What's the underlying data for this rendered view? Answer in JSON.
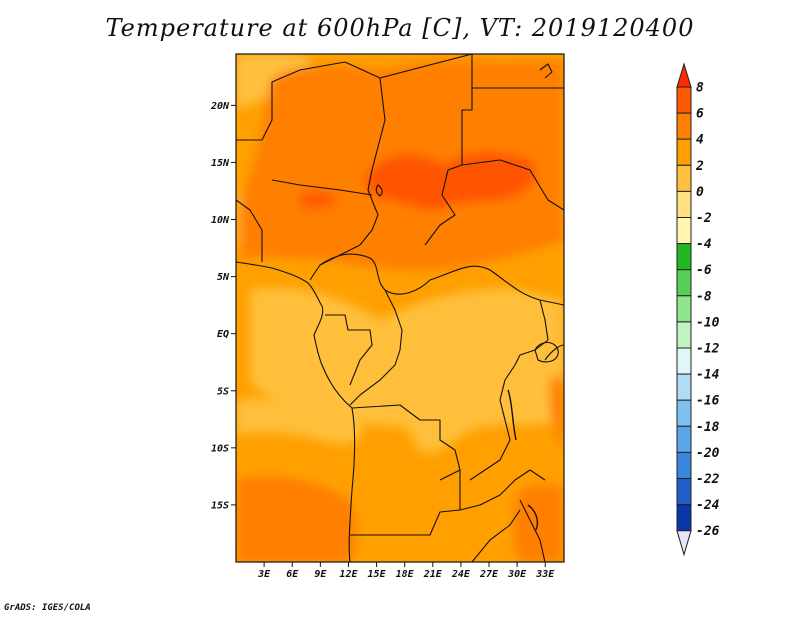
{
  "title": "Temperature at 600hPa [C], VT: 2019120400",
  "credit": "GrADS: IGES/COLA",
  "map": {
    "lat_labels": [
      "20N",
      "15N",
      "10N",
      "5N",
      "EQ",
      "5S",
      "10S",
      "15S"
    ],
    "lat_values": [
      20,
      15,
      10,
      5,
      0,
      -5,
      -10,
      -15
    ],
    "lon_labels": [
      "3E",
      "6E",
      "9E",
      "12E",
      "15E",
      "18E",
      "21E",
      "24E",
      "27E",
      "30E",
      "33E"
    ],
    "lon_values": [
      3,
      6,
      9,
      12,
      15,
      18,
      21,
      24,
      27,
      30,
      33
    ],
    "lon_range": [
      0,
      35
    ],
    "lat_range": [
      -20,
      24.5
    ]
  },
  "colorbar": {
    "labels": [
      "8",
      "6",
      "4",
      "2",
      "0",
      "-2",
      "-4",
      "-6",
      "-8",
      "-10",
      "-12",
      "-14",
      "-16",
      "-18",
      "-20",
      "-22",
      "-24",
      "-26"
    ],
    "colors": [
      "#ff2a00",
      "#ff5a00",
      "#ff7f00",
      "#ffa000",
      "#ffc040",
      "#ffe080",
      "#fff6b0",
      "#22b822",
      "#55d055",
      "#8ee58e",
      "#c2f2c2",
      "#e2f6fa",
      "#b0dcf4",
      "#80c0ee",
      "#5aa6e8",
      "#3a86dc",
      "#1e5ec8",
      "#0a36a8",
      "#0a1070"
    ]
  }
}
